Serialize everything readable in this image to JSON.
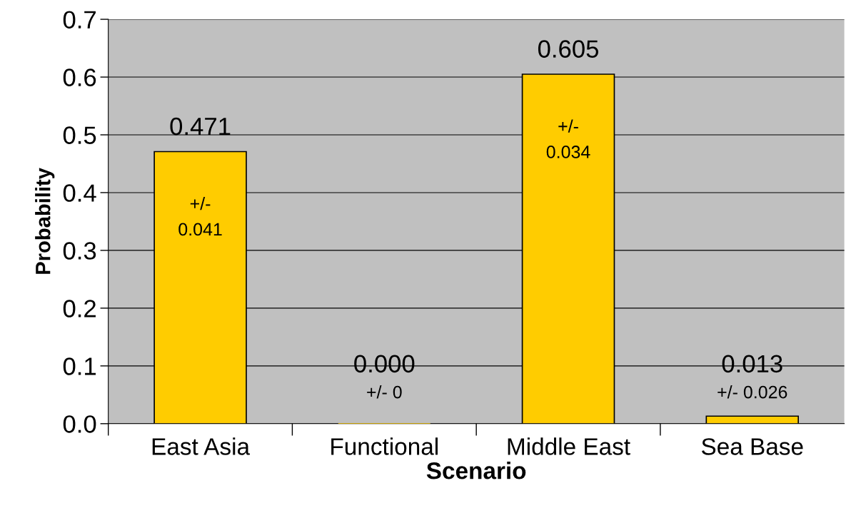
{
  "chart_data": {
    "type": "bar",
    "xlabel": "Scenario",
    "ylabel": "Probability",
    "categories": [
      "East Asia",
      "Functional",
      "Middle East",
      "Sea Base"
    ],
    "values": [
      0.471,
      0.0,
      0.605,
      0.013
    ],
    "value_labels": [
      "0.471",
      "0.000",
      "0.605",
      "0.013"
    ],
    "color": "#ffcc00",
    "ylim": [
      0,
      0.7
    ],
    "yticks": [
      {
        "value": 0,
        "label": "0.0"
      },
      0.1,
      0.2,
      0.3,
      0.4,
      0.5,
      0.6,
      0.7
    ],
    "grid": "y",
    "annotations": [
      "+/-\n0.041",
      "+/- 0",
      "+/-\n0.034",
      "+/- 0.026"
    ]
  }
}
